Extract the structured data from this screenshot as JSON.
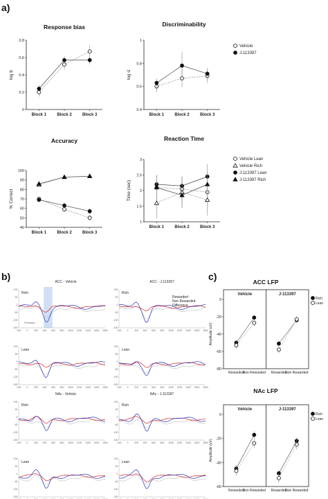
{
  "panel_labels": {
    "a": "a)",
    "b": "b)",
    "c": "c)"
  },
  "colors": {
    "vehicle": "#999999",
    "drug": "#111111",
    "rewarded": "#2233bb",
    "non_rewarded": "#dd2222",
    "difference": "#aaaaaa",
    "highlight": "#cfe0f5"
  },
  "chart_data": [
    {
      "id": "response-bias",
      "type": "line",
      "title": "Response bias",
      "ylabel": "log b",
      "categories": [
        "Block 1",
        "Block 2",
        "Block 3"
      ],
      "ylim": [
        0.0,
        0.8
      ],
      "yticks": [
        0.0,
        0.2,
        0.4,
        0.6,
        0.8
      ],
      "series": [
        {
          "name": "Vehicle",
          "marker": "circle-open",
          "values": [
            0.2,
            0.52,
            0.67
          ],
          "err": [
            0.05,
            0.06,
            0.07
          ]
        },
        {
          "name": "J-113397",
          "marker": "circle-filled",
          "values": [
            0.24,
            0.57,
            0.57
          ],
          "err": [
            0.04,
            0.05,
            0.05
          ]
        }
      ],
      "legend": "right"
    },
    {
      "id": "discriminability",
      "type": "line",
      "title": "Discriminability",
      "ylabel": "log d",
      "categories": [
        "Block 1",
        "Block 2",
        "Block 3"
      ],
      "ylim": [
        0.4,
        1.0
      ],
      "yticks": [
        0.4,
        0.6,
        0.8,
        1.0
      ],
      "series": [
        {
          "name": "Vehicle",
          "marker": "circle-open",
          "values": [
            0.6,
            0.67,
            0.69
          ],
          "err": [
            0.05,
            0.08,
            0.06
          ]
        },
        {
          "name": "J-113397",
          "marker": "circle-filled",
          "values": [
            0.63,
            0.78,
            0.71
          ],
          "err": [
            0.04,
            0.12,
            0.05
          ]
        }
      ]
    },
    {
      "id": "accuracy",
      "type": "line",
      "title": "Accuracy",
      "ylabel": "% Correct",
      "categories": [
        "Block 1",
        "Block 2",
        "Block 3"
      ],
      "ylim": [
        40,
        100
      ],
      "yticks": [
        40,
        50,
        60,
        70,
        80,
        90,
        100
      ],
      "series": [
        {
          "name": "Vehicle Lean",
          "marker": "circle-open",
          "values": [
            70,
            59,
            50
          ],
          "err": [
            2,
            3,
            3
          ]
        },
        {
          "name": "Vehicle Rich",
          "marker": "triangle-open",
          "values": [
            85,
            93,
            94
          ],
          "err": [
            1,
            1,
            1
          ]
        },
        {
          "name": "J-113397 Lean",
          "marker": "circle-filled",
          "values": [
            69,
            63,
            57
          ],
          "err": [
            2,
            3,
            3
          ]
        },
        {
          "name": "J-113397 Rich",
          "marker": "triangle-filled",
          "values": [
            86,
            93,
            94
          ],
          "err": [
            1,
            1,
            1
          ]
        }
      ],
      "legend": "right"
    },
    {
      "id": "reaction-time",
      "type": "line",
      "title": "Reaction Time",
      "ylabel": "Time (sec)",
      "categories": [
        "Block 1",
        "Block 2",
        "Block 3"
      ],
      "ylim": [
        1.0,
        3.0
      ],
      "yticks": [
        1.0,
        1.5,
        2.0,
        2.5,
        3.0
      ],
      "series": [
        {
          "name": "Vehicle Lean",
          "marker": "circle-open",
          "values": [
            2.1,
            2.05,
            1.95
          ],
          "err": [
            0.4,
            0.4,
            0.4
          ]
        },
        {
          "name": "Vehicle Rich",
          "marker": "triangle-open",
          "values": [
            1.6,
            1.95,
            1.7
          ],
          "err": [
            0.5,
            0.5,
            0.5
          ]
        },
        {
          "name": "J-113397 Lean",
          "marker": "circle-filled",
          "values": [
            2.2,
            2.15,
            2.45
          ],
          "err": [
            0.3,
            0.3,
            0.4
          ]
        },
        {
          "name": "J-113397 Rich",
          "marker": "triangle-filled",
          "values": [
            2.1,
            1.85,
            2.2
          ],
          "err": [
            0.4,
            0.4,
            0.4
          ]
        }
      ]
    },
    {
      "id": "acc-lfp",
      "type": "scatter",
      "title": "ACC LFP",
      "ylabel": "Amplitude (uV)",
      "facets": [
        "Vehicle",
        "J-113397"
      ],
      "categories": [
        "Rewarded",
        "Non Rewarded"
      ],
      "ylim": [
        -80,
        0
      ],
      "yticks": [
        -80,
        -60,
        -40,
        -20,
        0
      ],
      "series": [
        {
          "name": "Rich",
          "marker": "circle-filled",
          "facet_values": [
            [
              -50,
              -21
            ],
            [
              -51,
              -24
            ]
          ],
          "err": 3
        },
        {
          "name": "Lean",
          "marker": "circle-open",
          "facet_values": [
            [
              -53,
              -27
            ],
            [
              -58,
              -23
            ]
          ],
          "err": 4
        }
      ],
      "legend": "right"
    },
    {
      "id": "nac-lfp",
      "type": "scatter",
      "title": "NAc LFP",
      "ylabel": "Amplitude (uV)",
      "facets": [
        "Vehicle",
        "J-113397"
      ],
      "categories": [
        "Rewarded",
        "Non Rewarded"
      ],
      "ylim": [
        -60,
        0
      ],
      "yticks": [
        -60,
        -40,
        -20,
        0
      ],
      "series": [
        {
          "name": "Rich",
          "marker": "circle-filled",
          "facet_values": [
            [
              -45,
              -17
            ],
            [
              -49,
              -22
            ]
          ],
          "err": 3
        },
        {
          "name": "Lean",
          "marker": "circle-open",
          "facet_values": [
            [
              -47,
              -24
            ],
            [
              -53,
              -25
            ]
          ],
          "err": 4
        }
      ],
      "legend": "right"
    }
  ],
  "erp": {
    "legend": [
      {
        "name": "Rewarded",
        "color": "#2233bb"
      },
      {
        "name": "Non Rewarded",
        "color": "#dd2222"
      },
      {
        "name": "Difference",
        "color": "#aaaaaa"
      }
    ],
    "xticks": [
      "-200",
      "0",
      "200",
      "400",
      "600",
      "800",
      "1000",
      "1200",
      "1400",
      "1600",
      "1800"
    ],
    "yticks": [
      "100",
      "50",
      "0",
      "-50",
      "-100",
      "-150"
    ],
    "panels": [
      {
        "id": "acc-veh-rich",
        "title": "ACC - Vehicle",
        "cond": "Rich",
        "highlight": true,
        "annotation": "Feedback"
      },
      {
        "id": "acc-j-rich",
        "title": "ACC - J-113397",
        "cond": "Rich",
        "highlight": false,
        "annotation": ""
      },
      {
        "id": "acc-veh-lean",
        "title": "",
        "cond": "Lean",
        "highlight": false,
        "annotation": ""
      },
      {
        "id": "acc-j-lean",
        "title": "",
        "cond": "Lean",
        "highlight": false,
        "annotation": ""
      },
      {
        "id": "nac-veh-rich",
        "title": "NAc - Vehicle",
        "cond": "Rich",
        "highlight": false,
        "annotation": ""
      },
      {
        "id": "nac-j-rich",
        "title": "NAc - J-113397",
        "cond": "Rich",
        "highlight": false,
        "annotation": ""
      },
      {
        "id": "nac-veh-lean",
        "title": "",
        "cond": "Lean",
        "highlight": false,
        "annotation": ""
      },
      {
        "id": "nac-j-lean",
        "title": "",
        "cond": "Lean",
        "highlight": false,
        "annotation": ""
      }
    ]
  }
}
